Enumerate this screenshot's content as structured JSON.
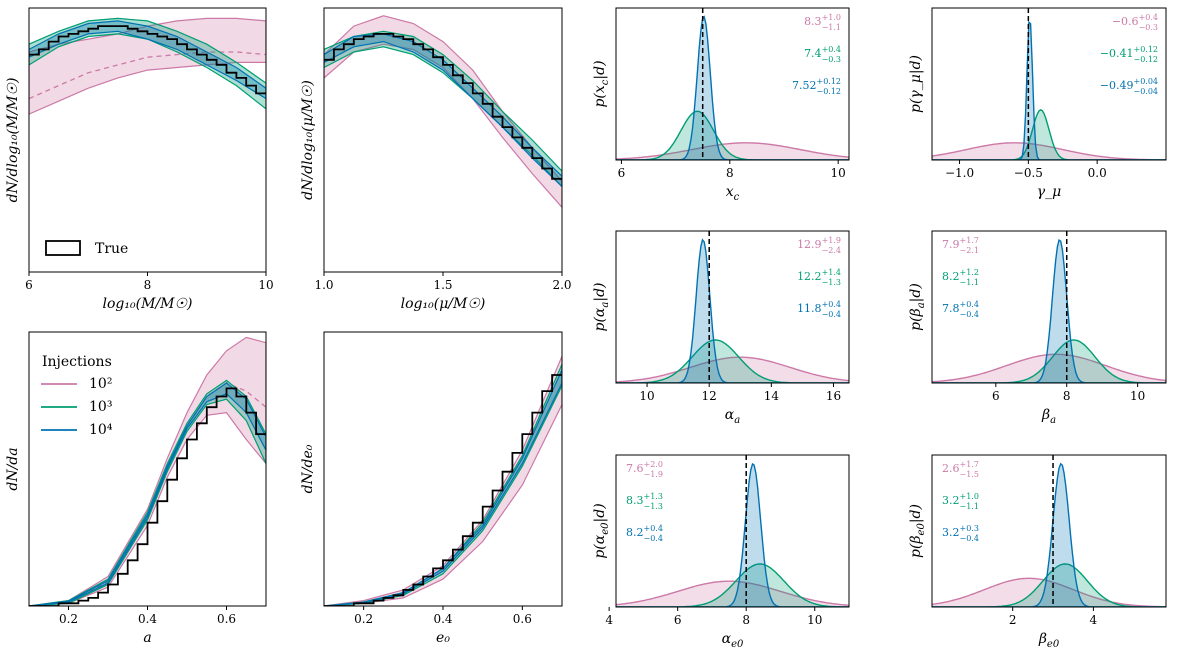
{
  "colors": {
    "c100": "#cc79a7",
    "c1000": "#009e73",
    "c10000": "#0072b2",
    "truth": "#000000"
  },
  "legend": {
    "title": "Injections",
    "entries": [
      {
        "label": "10²",
        "color": "#cc79a7"
      },
      {
        "label": "10³",
        "color": "#009e73"
      },
      {
        "label": "10⁴",
        "color": "#0072b2"
      }
    ],
    "true_label": "True"
  },
  "chart_data": [
    {
      "id": "massfn",
      "type": "area",
      "xlabel": "log₁₀(M/M☉)",
      "ylabel": "dN/dlog₁₀(M/M☉)",
      "xlim": [
        6,
        10
      ],
      "ylim": [
        0,
        1
      ],
      "xticks": [
        6,
        8,
        10
      ],
      "xtick_labels": [
        "6",
        "8",
        "10"
      ],
      "bands": {
        "x": [
          6,
          6.5,
          7,
          7.5,
          8,
          8.5,
          9,
          9.5,
          10
        ],
        "c100": {
          "lo": [
            0.61,
            0.66,
            0.71,
            0.75,
            0.78,
            0.79,
            0.8,
            0.81,
            0.81
          ],
          "hi": [
            0.85,
            0.88,
            0.9,
            0.92,
            0.95,
            0.97,
            0.98,
            0.98,
            0.97
          ],
          "med": [
            0.67,
            0.72,
            0.77,
            0.8,
            0.83,
            0.84,
            0.85,
            0.85,
            0.84
          ]
        },
        "c1000": {
          "lo": [
            0.8,
            0.87,
            0.91,
            0.92,
            0.9,
            0.85,
            0.79,
            0.72,
            0.63
          ],
          "hi": [
            0.88,
            0.93,
            0.97,
            0.98,
            0.97,
            0.93,
            0.88,
            0.81,
            0.73
          ]
        },
        "c10000": {
          "lo": [
            0.83,
            0.88,
            0.92,
            0.93,
            0.9,
            0.86,
            0.8,
            0.74,
            0.67
          ],
          "hi": [
            0.86,
            0.92,
            0.96,
            0.97,
            0.95,
            0.91,
            0.85,
            0.79,
            0.71
          ]
        }
      },
      "truth": [
        0.84,
        0.86,
        0.89,
        0.91,
        0.92,
        0.93,
        0.94,
        0.95,
        0.95,
        0.95,
        0.94,
        0.93,
        0.92,
        0.91,
        0.9,
        0.88,
        0.86,
        0.84,
        0.82,
        0.8,
        0.77,
        0.75,
        0.72,
        0.69
      ],
      "legend_true": true
    },
    {
      "id": "massratio",
      "type": "area",
      "xlabel": "log₁₀(μ/M☉)",
      "ylabel": "dN/dlog₁₀(μ/M☉)",
      "xlim": [
        1.0,
        2.0
      ],
      "ylim": [
        0,
        1
      ],
      "xticks": [
        1.0,
        1.5,
        2.0
      ],
      "xtick_labels": [
        "1.0",
        "1.5",
        "2.0"
      ],
      "bands": {
        "x": [
          1.0,
          1.125,
          1.25,
          1.375,
          1.5,
          1.625,
          1.75,
          1.875,
          2.0
        ],
        "c100": {
          "lo": [
            0.75,
            0.85,
            0.88,
            0.86,
            0.79,
            0.67,
            0.52,
            0.38,
            0.25
          ],
          "hi": [
            0.84,
            0.95,
            0.99,
            0.96,
            0.89,
            0.78,
            0.62,
            0.48,
            0.35
          ]
        },
        "c1000": {
          "lo": [
            0.79,
            0.85,
            0.87,
            0.84,
            0.77,
            0.67,
            0.56,
            0.45,
            0.33
          ],
          "hi": [
            0.86,
            0.91,
            0.93,
            0.91,
            0.84,
            0.74,
            0.62,
            0.51,
            0.39
          ]
        },
        "c10000": {
          "lo": [
            0.81,
            0.87,
            0.89,
            0.85,
            0.78,
            0.67,
            0.56,
            0.44,
            0.33
          ],
          "hi": [
            0.84,
            0.91,
            0.92,
            0.89,
            0.82,
            0.71,
            0.6,
            0.48,
            0.37
          ]
        }
      },
      "truth": [
        0.82,
        0.86,
        0.88,
        0.9,
        0.91,
        0.92,
        0.92,
        0.91,
        0.9,
        0.88,
        0.86,
        0.83,
        0.8,
        0.76,
        0.73,
        0.69,
        0.65,
        0.6,
        0.56,
        0.52,
        0.48,
        0.44,
        0.4,
        0.36
      ]
    },
    {
      "id": "spin",
      "type": "area",
      "xlabel": "a",
      "ylabel": "dN/da",
      "xlim": [
        0.1,
        0.7
      ],
      "ylim": [
        0,
        1
      ],
      "xticks": [
        0.2,
        0.4,
        0.6
      ],
      "xtick_labels": [
        "0.2",
        "0.4",
        "0.6"
      ],
      "bands": {
        "x": [
          0.1,
          0.2,
          0.3,
          0.4,
          0.45,
          0.5,
          0.55,
          0.6,
          0.65,
          0.7
        ],
        "c100": {
          "lo": [
            0,
            0.01,
            0.07,
            0.3,
            0.48,
            0.62,
            0.71,
            0.72,
            0.62,
            0.53
          ],
          "hi": [
            0,
            0.02,
            0.11,
            0.36,
            0.55,
            0.72,
            0.86,
            0.95,
            1.0,
            0.98
          ],
          "med": [
            0,
            0.015,
            0.09,
            0.33,
            0.51,
            0.67,
            0.78,
            0.83,
            0.8,
            0.74
          ]
        },
        "c1000": {
          "lo": [
            0,
            0.01,
            0.08,
            0.32,
            0.5,
            0.65,
            0.75,
            0.77,
            0.69,
            0.53
          ],
          "hi": [
            0,
            0.02,
            0.1,
            0.35,
            0.53,
            0.68,
            0.79,
            0.84,
            0.78,
            0.64
          ]
        },
        "c10000": {
          "lo": [
            0,
            0.015,
            0.085,
            0.33,
            0.51,
            0.66,
            0.76,
            0.79,
            0.72,
            0.58
          ],
          "hi": [
            0,
            0.018,
            0.095,
            0.34,
            0.52,
            0.67,
            0.78,
            0.83,
            0.77,
            0.63
          ]
        }
      },
      "truth": [
        0,
        0.0,
        0.0,
        0.01,
        0.01,
        0.02,
        0.03,
        0.05,
        0.08,
        0.12,
        0.17,
        0.23,
        0.31,
        0.39,
        0.47,
        0.55,
        0.62,
        0.68,
        0.74,
        0.78,
        0.81,
        0.78,
        0.72,
        0.64
      ],
      "legend_inj": true
    },
    {
      "id": "ecc",
      "type": "area",
      "xlabel": "e₀",
      "ylabel": "dN/de₀",
      "xlim": [
        0.1,
        0.7
      ],
      "ylim": [
        0,
        1
      ],
      "xticks": [
        0.2,
        0.4,
        0.6
      ],
      "xtick_labels": [
        "0.2",
        "0.4",
        "0.6"
      ],
      "bands": {
        "x": [
          0.1,
          0.2,
          0.3,
          0.4,
          0.5,
          0.6,
          0.7
        ],
        "c100": {
          "lo": [
            0,
            0.01,
            0.03,
            0.1,
            0.24,
            0.45,
            0.75
          ],
          "hi": [
            0,
            0.02,
            0.06,
            0.15,
            0.32,
            0.58,
            0.93
          ]
        },
        "c1000": {
          "lo": [
            0,
            0.01,
            0.04,
            0.12,
            0.28,
            0.52,
            0.82
          ],
          "hi": [
            0,
            0.015,
            0.05,
            0.14,
            0.31,
            0.56,
            0.9
          ]
        },
        "c10000": {
          "lo": [
            0,
            0.012,
            0.045,
            0.13,
            0.29,
            0.53,
            0.83
          ],
          "hi": [
            0,
            0.014,
            0.05,
            0.14,
            0.3,
            0.55,
            0.88
          ]
        }
      },
      "truth": [
        0,
        0.0,
        0.0,
        0.01,
        0.01,
        0.02,
        0.03,
        0.04,
        0.06,
        0.08,
        0.11,
        0.14,
        0.17,
        0.21,
        0.26,
        0.31,
        0.37,
        0.43,
        0.5,
        0.57,
        0.64,
        0.72,
        0.8,
        0.86
      ]
    },
    {
      "id": "xc",
      "type": "area",
      "xlabel": "x_c",
      "ylabel": "p(x_c|d)",
      "xlim": [
        5.9,
        10.2
      ],
      "xticks": [
        6,
        8,
        10
      ],
      "xtick_labels": [
        "6",
        "8",
        "10"
      ],
      "truth_x": 7.5,
      "posteriors": [
        {
          "key": "c100",
          "mean": 8.3,
          "sd": 1.0,
          "peak": 0.12
        },
        {
          "key": "c1000",
          "mean": 7.4,
          "sd": 0.3,
          "peak": 0.34
        },
        {
          "key": "c10000",
          "mean": 7.52,
          "sd": 0.12,
          "peak": 1.0
        }
      ],
      "annotations": [
        {
          "key": "c100",
          "value": "8.3",
          "plus": "+1.0",
          "minus": "−1.1",
          "side": "right"
        },
        {
          "key": "c1000",
          "value": "7.4",
          "plus": "+0.4",
          "minus": "−0.3",
          "side": "right"
        },
        {
          "key": "c10000",
          "value": "7.52",
          "plus": "+0.12",
          "minus": "−0.12",
          "side": "right"
        }
      ]
    },
    {
      "id": "gmu",
      "type": "area",
      "xlabel": "γ_μ",
      "ylabel": "p(γ_μ|d)",
      "xlim": [
        -1.2,
        0.5
      ],
      "xticks": [
        -1.0,
        -0.5,
        0.0
      ],
      "xtick_labels": [
        "−1.0",
        "−0.5",
        "0.0"
      ],
      "truth_x": -0.5,
      "posteriors": [
        {
          "key": "c100",
          "mean": -0.6,
          "sd": 0.35,
          "peak": 0.12
        },
        {
          "key": "c1000",
          "mean": -0.41,
          "sd": 0.06,
          "peak": 0.35
        },
        {
          "key": "c10000",
          "mean": -0.49,
          "sd": 0.02,
          "peak": 1.0
        }
      ],
      "annotations": [
        {
          "key": "c100",
          "value": "−0.6",
          "plus": "+0.4",
          "minus": "−0.3",
          "side": "right"
        },
        {
          "key": "c1000",
          "value": "−0.41",
          "plus": "+0.12",
          "minus": "−0.12",
          "side": "right"
        },
        {
          "key": "c10000",
          "value": "−0.49",
          "plus": "+0.04",
          "minus": "−0.04",
          "side": "right"
        }
      ]
    },
    {
      "id": "aa",
      "type": "area",
      "xlabel": "α_a",
      "ylabel": "p(α_a|d)",
      "xlim": [
        9.0,
        16.5
      ],
      "xticks": [
        10,
        12,
        14,
        16
      ],
      "xtick_labels": [
        "10",
        "12",
        "14",
        "16"
      ],
      "truth_x": 12,
      "posteriors": [
        {
          "key": "c100",
          "mean": 13.0,
          "sd": 1.6,
          "peak": 0.18
        },
        {
          "key": "c1000",
          "mean": 12.2,
          "sd": 0.75,
          "peak": 0.3
        },
        {
          "key": "c10000",
          "mean": 11.8,
          "sd": 0.22,
          "peak": 1.0
        }
      ],
      "annotations": [
        {
          "key": "c100",
          "value": "12.9",
          "plus": "+1.9",
          "minus": "−2.4",
          "side": "right"
        },
        {
          "key": "c1000",
          "value": "12.2",
          "plus": "+1.4",
          "minus": "−1.3",
          "side": "right"
        },
        {
          "key": "c10000",
          "value": "11.8",
          "plus": "+0.4",
          "minus": "−0.4",
          "side": "right"
        }
      ]
    },
    {
      "id": "ba",
      "type": "area",
      "xlabel": "β_a",
      "ylabel": "p(β_a|d)",
      "xlim": [
        4.2,
        10.8
      ],
      "xticks": [
        6,
        8,
        10
      ],
      "xtick_labels": [
        "6",
        "8",
        "10"
      ],
      "truth_x": 8,
      "posteriors": [
        {
          "key": "c100",
          "mean": 7.7,
          "sd": 1.4,
          "peak": 0.2
        },
        {
          "key": "c1000",
          "mean": 8.2,
          "sd": 0.6,
          "peak": 0.3
        },
        {
          "key": "c10000",
          "mean": 7.8,
          "sd": 0.2,
          "peak": 1.0
        }
      ],
      "annotations": [
        {
          "key": "c100",
          "value": "7.9",
          "plus": "+1.7",
          "minus": "−2.1",
          "side": "left"
        },
        {
          "key": "c1000",
          "value": "8.2",
          "plus": "+1.2",
          "minus": "−1.1",
          "side": "left"
        },
        {
          "key": "c10000",
          "value": "7.8",
          "plus": "+0.4",
          "minus": "−0.4",
          "side": "left"
        }
      ]
    },
    {
      "id": "ae0",
      "type": "area",
      "xlabel": "α_e0",
      "ylabel": "p(α_e0|d)",
      "xlim": [
        4.2,
        11.0
      ],
      "xticks": [
        4,
        6,
        8,
        10
      ],
      "xtick_labels": [
        "4",
        "6",
        "8",
        "10"
      ],
      "truth_x": 8,
      "posteriors": [
        {
          "key": "c100",
          "mean": 7.5,
          "sd": 1.5,
          "peak": 0.18
        },
        {
          "key": "c1000",
          "mean": 8.4,
          "sd": 0.7,
          "peak": 0.3
        },
        {
          "key": "c10000",
          "mean": 8.2,
          "sd": 0.22,
          "peak": 1.0
        }
      ],
      "annotations": [
        {
          "key": "c100",
          "value": "7.6",
          "plus": "+2.0",
          "minus": "−1.9",
          "side": "left"
        },
        {
          "key": "c1000",
          "value": "8.3",
          "plus": "+1.3",
          "minus": "−1.3",
          "side": "left"
        },
        {
          "key": "c10000",
          "value": "8.2",
          "plus": "+0.4",
          "minus": "−0.4",
          "side": "left"
        }
      ]
    },
    {
      "id": "be0",
      "type": "area",
      "xlabel": "β_e0",
      "ylabel": "p(β_e0|d)",
      "xlim": [
        0.0,
        5.8
      ],
      "xticks": [
        2,
        4
      ],
      "xtick_labels": [
        "2",
        "4"
      ],
      "truth_x": 3,
      "posteriors": [
        {
          "key": "c100",
          "mean": 2.4,
          "sd": 1.1,
          "peak": 0.2
        },
        {
          "key": "c1000",
          "mean": 3.3,
          "sd": 0.55,
          "peak": 0.3
        },
        {
          "key": "c10000",
          "mean": 3.2,
          "sd": 0.2,
          "peak": 1.0
        }
      ],
      "annotations": [
        {
          "key": "c100",
          "value": "2.6",
          "plus": "+1.7",
          "minus": "−1.5",
          "side": "left"
        },
        {
          "key": "c1000",
          "value": "3.2",
          "plus": "+1.0",
          "minus": "−1.1",
          "side": "left"
        },
        {
          "key": "c10000",
          "value": "3.2",
          "plus": "+0.3",
          "minus": "−0.4",
          "side": "left"
        }
      ]
    }
  ]
}
